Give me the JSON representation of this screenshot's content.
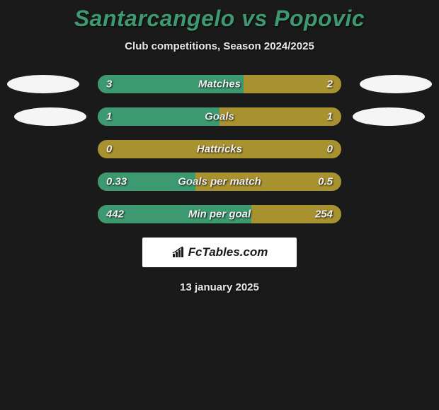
{
  "title": "Santarcangelo vs Popovic",
  "subtitle": "Club competitions, Season 2024/2025",
  "date": "13 january 2025",
  "colors": {
    "background": "#1a1a1a",
    "title_color": "#3d9970",
    "bar_background": "#a8912f",
    "bar_fill": "#3d9970",
    "text": "#f0f0f0",
    "ellipse": "#f5f5f5"
  },
  "stats": [
    {
      "label": "Matches",
      "left_value": "3",
      "right_value": "2",
      "left_pct": 60,
      "right_pct": 0
    },
    {
      "label": "Goals",
      "left_value": "1",
      "right_value": "1",
      "left_pct": 50,
      "right_pct": 0
    },
    {
      "label": "Hattricks",
      "left_value": "0",
      "right_value": "0",
      "left_pct": 0,
      "right_pct": 0
    },
    {
      "label": "Goals per match",
      "left_value": "0.33",
      "right_value": "0.5",
      "left_pct": 40,
      "right_pct": 0
    },
    {
      "label": "Min per goal",
      "left_value": "442",
      "right_value": "254",
      "left_pct": 63,
      "right_pct": 0
    }
  ],
  "watermark": {
    "text": "FcTables.com"
  }
}
